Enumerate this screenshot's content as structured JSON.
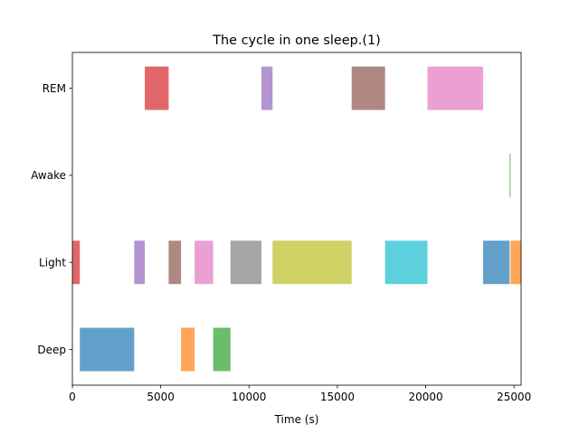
{
  "chart_data": {
    "type": "bar",
    "orientation": "horizontal",
    "title": "The cycle in one sleep.(1)",
    "xlabel": "Time (s)",
    "ylabel": "",
    "xlim": [
      0,
      25400
    ],
    "x_ticks": [
      0,
      5000,
      10000,
      15000,
      20000,
      25000
    ],
    "categories": [
      "Deep",
      "Light",
      "Awake",
      "REM"
    ],
    "grid": false,
    "legend": "none",
    "segments": [
      {
        "stage": "Light",
        "start": 0,
        "end": 420,
        "color": "#d62728"
      },
      {
        "stage": "Deep",
        "start": 420,
        "end": 3500,
        "color": "#1f77b4"
      },
      {
        "stage": "Light",
        "start": 3500,
        "end": 4100,
        "color": "#9467bd"
      },
      {
        "stage": "REM",
        "start": 4100,
        "end": 5450,
        "color": "#d62728"
      },
      {
        "stage": "Light",
        "start": 5450,
        "end": 6150,
        "color": "#8c564b"
      },
      {
        "stage": "Deep",
        "start": 6150,
        "end": 6920,
        "color": "#ff7f0e"
      },
      {
        "stage": "Light",
        "start": 6920,
        "end": 7970,
        "color": "#e377c2"
      },
      {
        "stage": "Deep",
        "start": 7970,
        "end": 8950,
        "color": "#2ca02c"
      },
      {
        "stage": "Light",
        "start": 8950,
        "end": 10700,
        "color": "#7f7f7f"
      },
      {
        "stage": "REM",
        "start": 10700,
        "end": 11330,
        "color": "#9467bd"
      },
      {
        "stage": "Light",
        "start": 11330,
        "end": 15810,
        "color": "#bcbd22"
      },
      {
        "stage": "REM",
        "start": 15810,
        "end": 17700,
        "color": "#8c564b"
      },
      {
        "stage": "Light",
        "start": 17700,
        "end": 20100,
        "color": "#17becf"
      },
      {
        "stage": "REM",
        "start": 20100,
        "end": 23250,
        "color": "#e377c2"
      },
      {
        "stage": "Light",
        "start": 23250,
        "end": 24750,
        "color": "#1f77b4"
      },
      {
        "stage": "Awake",
        "start": 24750,
        "end": 24800,
        "color": "#2ca02c"
      },
      {
        "stage": "Light",
        "start": 24800,
        "end": 25400,
        "color": "#ff7f0e"
      }
    ]
  }
}
